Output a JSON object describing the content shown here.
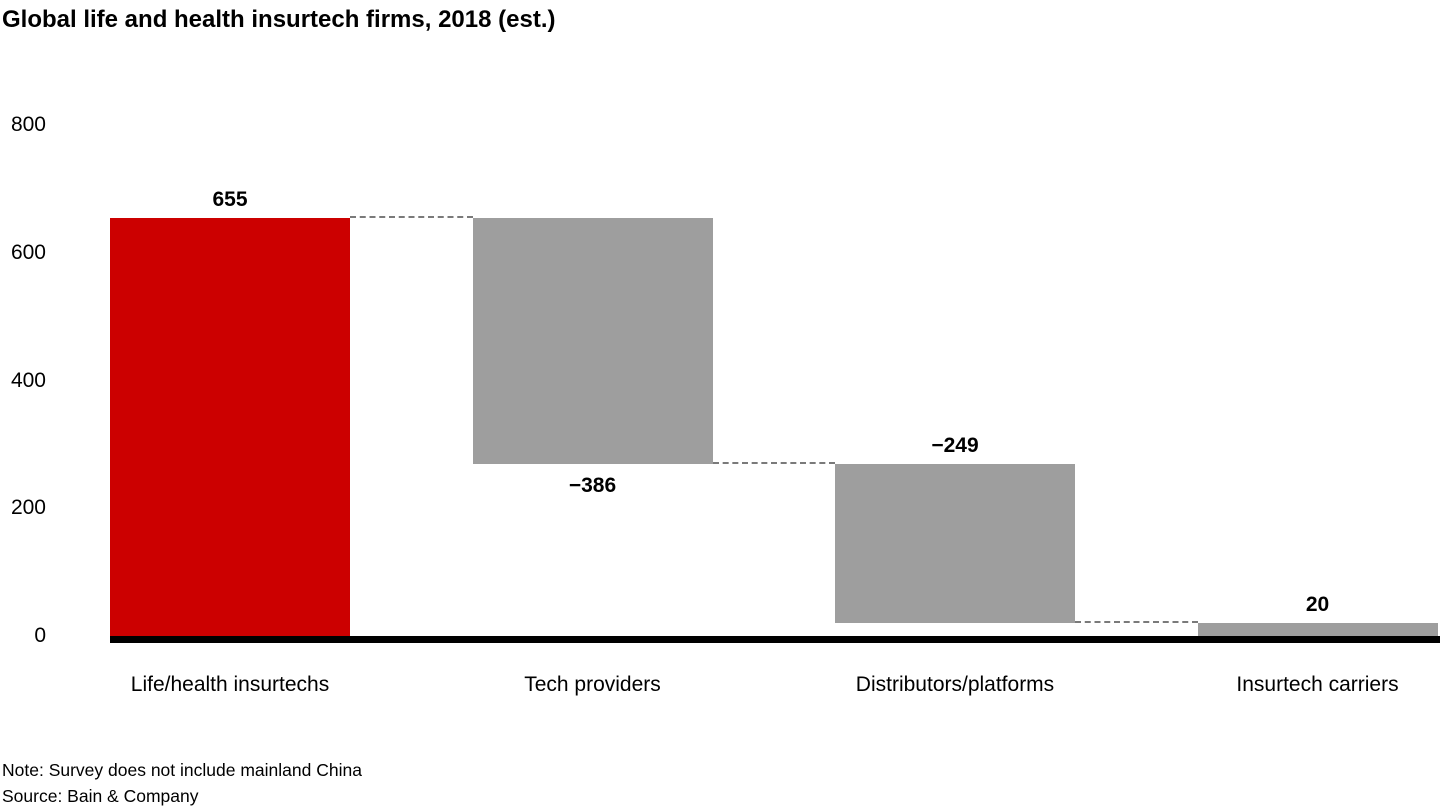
{
  "title": "Global life and health insurtech firms, 2018 (est.)",
  "footer": {
    "note": "Note: Survey does not include mainland China",
    "source": "Source: Bain & Company"
  },
  "colors": {
    "highlight_red": "#cc0000",
    "bar_gray": "#9e9e9e",
    "axis_black": "#000000",
    "connector_gray": "#7a7a7a",
    "text_black": "#000000"
  },
  "chart_data": {
    "type": "bar",
    "subtype": "waterfall",
    "title": "Global life and health insurtech firms, 2018 (est.)",
    "xlabel": "",
    "ylabel": "",
    "ylim": [
      0,
      800
    ],
    "y_ticks": [
      0,
      200,
      400,
      600,
      800
    ],
    "grid": false,
    "connectors": true,
    "categories": [
      "Life/health insurtechs",
      "Tech providers",
      "Distributors/platforms",
      "Insurtech carriers"
    ],
    "bars": [
      {
        "category": "Life/health insurtechs",
        "label": "655",
        "value": 655,
        "start": 0,
        "end": 655,
        "color": "#cc0000",
        "label_position": "above"
      },
      {
        "category": "Tech providers",
        "label": "−386",
        "value": -386,
        "start": 655,
        "end": 269,
        "color": "#9e9e9e",
        "label_position": "below"
      },
      {
        "category": "Distributors/platforms",
        "label": "−249",
        "value": -249,
        "start": 269,
        "end": 20,
        "color": "#9e9e9e",
        "label_position": "above"
      },
      {
        "category": "Insurtech carriers",
        "label": "20",
        "value": 20,
        "start": 0,
        "end": 20,
        "color": "#9e9e9e",
        "label_position": "above"
      }
    ]
  }
}
